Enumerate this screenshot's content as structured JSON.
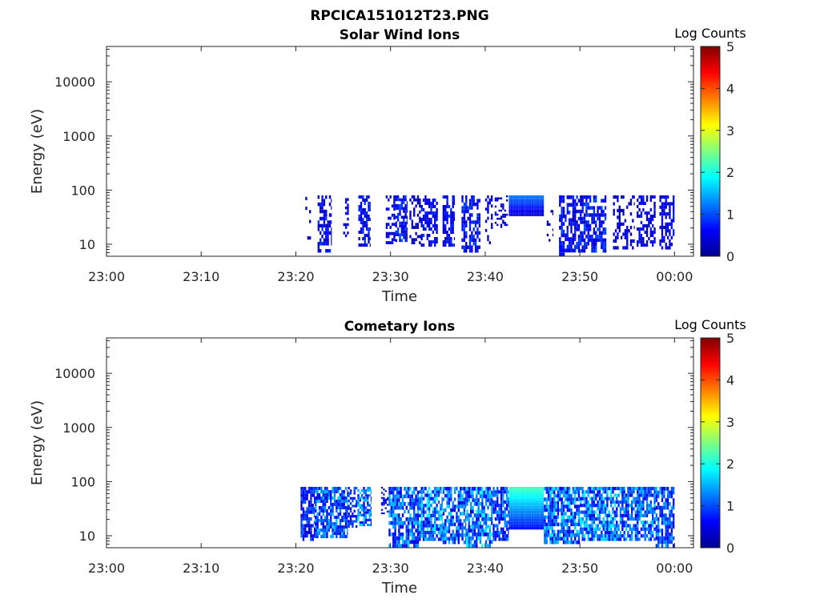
{
  "figure": {
    "title": "RPCICA151012T23.PNG"
  },
  "colormap": [
    "#00008f",
    "#0000ff",
    "#0080ff",
    "#00ffff",
    "#80ff80",
    "#ffff00",
    "#ff8000",
    "#ff0000",
    "#800000"
  ],
  "chart_data": [
    {
      "type": "heatmap",
      "title": "Solar Wind Ions",
      "xlabel": "Time",
      "ylabel": "Energy (eV)",
      "x_tick_labels": [
        "23:00",
        "23:10",
        "23:20",
        "23:30",
        "23:40",
        "23:50",
        "00:00"
      ],
      "x_tick_minutes": [
        0,
        10,
        20,
        30,
        40,
        50,
        60
      ],
      "xlim_minutes": [
        0,
        62
      ],
      "y_scale": "log",
      "y_tick_labels": [
        "10",
        "100",
        "1000",
        "10000"
      ],
      "y_tick_values": [
        10,
        100,
        1000,
        10000
      ],
      "ylim": [
        6,
        45000
      ],
      "colorbar": {
        "label": "Log Counts",
        "ticks": [
          "0",
          "1",
          "2",
          "3",
          "4",
          "5"
        ],
        "range": [
          0,
          5
        ]
      },
      "bursts": [
        {
          "t_start": 21.0,
          "t_end": 21.6,
          "e_min": 8,
          "e_max": 75,
          "level": 0.3,
          "density": 0.25
        },
        {
          "t_start": 22.3,
          "t_end": 23.8,
          "e_min": 7,
          "e_max": 80,
          "level": 0.8,
          "density": 0.6
        },
        {
          "t_start": 25.0,
          "t_end": 25.6,
          "e_min": 12,
          "e_max": 80,
          "level": 0.5,
          "density": 0.3
        },
        {
          "t_start": 26.6,
          "t_end": 27.9,
          "e_min": 9,
          "e_max": 80,
          "level": 0.8,
          "density": 0.55
        },
        {
          "t_start": 29.5,
          "t_end": 30.5,
          "e_min": 10,
          "e_max": 80,
          "level": 0.7,
          "density": 0.5
        },
        {
          "t_start": 30.5,
          "t_end": 31.8,
          "e_min": 11,
          "e_max": 80,
          "level": 0.9,
          "density": 0.7
        },
        {
          "t_start": 32.0,
          "t_end": 33.2,
          "e_min": 10,
          "e_max": 80,
          "level": 0.4,
          "density": 0.35
        },
        {
          "t_start": 33.2,
          "t_end": 35.0,
          "e_min": 9,
          "e_max": 80,
          "level": 0.8,
          "density": 0.6
        },
        {
          "t_start": 35.5,
          "t_end": 36.8,
          "e_min": 9,
          "e_max": 80,
          "level": 0.8,
          "density": 0.55
        },
        {
          "t_start": 37.5,
          "t_end": 39.5,
          "e_min": 7,
          "e_max": 80,
          "level": 0.85,
          "density": 0.65
        },
        {
          "t_start": 40.0,
          "t_end": 40.8,
          "e_min": 10,
          "e_max": 80,
          "level": 0.5,
          "density": 0.4
        },
        {
          "t_start": 41.0,
          "t_end": 42.4,
          "e_min": 20,
          "e_max": 80,
          "level": 0.6,
          "density": 0.35
        },
        {
          "t_start": 42.5,
          "t_end": 46.2,
          "e_min": 33,
          "e_max": 80,
          "level": 1.0,
          "density": 1.0
        },
        {
          "t_start": 46.5,
          "t_end": 47.2,
          "e_min": 10,
          "e_max": 60,
          "level": 0.3,
          "density": 0.2
        },
        {
          "t_start": 47.8,
          "t_end": 49.6,
          "e_min": 6,
          "e_max": 80,
          "level": 0.8,
          "density": 0.6
        },
        {
          "t_start": 49.6,
          "t_end": 52.8,
          "e_min": 7,
          "e_max": 80,
          "level": 0.9,
          "density": 0.65
        },
        {
          "t_start": 53.5,
          "t_end": 55.8,
          "e_min": 8,
          "e_max": 80,
          "level": 0.5,
          "density": 0.35
        },
        {
          "t_start": 56.0,
          "t_end": 58.0,
          "e_min": 9,
          "e_max": 80,
          "level": 0.7,
          "density": 0.55
        },
        {
          "t_start": 58.4,
          "t_end": 60.0,
          "e_min": 8,
          "e_max": 80,
          "level": 0.7,
          "density": 0.5
        }
      ]
    },
    {
      "type": "heatmap",
      "title": "Cometary Ions",
      "xlabel": "Time",
      "ylabel": "Energy (eV)",
      "x_tick_labels": [
        "23:00",
        "23:10",
        "23:20",
        "23:30",
        "23:40",
        "23:50",
        "00:00"
      ],
      "x_tick_minutes": [
        0,
        10,
        20,
        30,
        40,
        50,
        60
      ],
      "xlim_minutes": [
        0,
        62
      ],
      "y_scale": "log",
      "y_tick_labels": [
        "10",
        "100",
        "1000",
        "10000"
      ],
      "y_tick_values": [
        10,
        100,
        1000,
        10000
      ],
      "ylim": [
        6,
        45000
      ],
      "colorbar": {
        "label": "Log Counts",
        "ticks": [
          "0",
          "1",
          "2",
          "3",
          "4",
          "5"
        ],
        "range": [
          0,
          5
        ]
      },
      "bursts": [
        {
          "t_start": 20.5,
          "t_end": 22.0,
          "e_min": 8,
          "e_max": 80,
          "level": 1.0,
          "density": 0.7
        },
        {
          "t_start": 22.0,
          "t_end": 25.5,
          "e_min": 9,
          "e_max": 80,
          "level": 1.4,
          "density": 0.75
        },
        {
          "t_start": 25.5,
          "t_end": 26.5,
          "e_min": 14,
          "e_max": 80,
          "level": 1.0,
          "density": 0.55
        },
        {
          "t_start": 26.5,
          "t_end": 28.0,
          "e_min": 15,
          "e_max": 80,
          "level": 1.6,
          "density": 0.7
        },
        {
          "t_start": 29.0,
          "t_end": 29.8,
          "e_min": 25,
          "e_max": 80,
          "level": 0.6,
          "density": 0.4
        },
        {
          "t_start": 29.8,
          "t_end": 33.0,
          "e_min": 6,
          "e_max": 80,
          "level": 1.5,
          "density": 0.75
        },
        {
          "t_start": 33.0,
          "t_end": 35.5,
          "e_min": 8,
          "e_max": 80,
          "level": 1.7,
          "density": 0.8
        },
        {
          "t_start": 35.5,
          "t_end": 38.0,
          "e_min": 7,
          "e_max": 80,
          "level": 1.5,
          "density": 0.75
        },
        {
          "t_start": 38.0,
          "t_end": 40.8,
          "e_min": 6,
          "e_max": 80,
          "level": 1.7,
          "density": 0.8
        },
        {
          "t_start": 40.8,
          "t_end": 42.5,
          "e_min": 8,
          "e_max": 80,
          "level": 1.3,
          "density": 0.7
        },
        {
          "t_start": 42.5,
          "t_end": 46.2,
          "e_min": 13,
          "e_max": 80,
          "level": 1.8,
          "density": 1.0
        },
        {
          "t_start": 46.2,
          "t_end": 50.0,
          "e_min": 7,
          "e_max": 80,
          "level": 1.6,
          "density": 0.8
        },
        {
          "t_start": 50.0,
          "t_end": 54.0,
          "e_min": 8,
          "e_max": 80,
          "level": 1.7,
          "density": 0.8
        },
        {
          "t_start": 54.0,
          "t_end": 58.0,
          "e_min": 8,
          "e_max": 80,
          "level": 1.5,
          "density": 0.75
        },
        {
          "t_start": 58.0,
          "t_end": 60.0,
          "e_min": 6,
          "e_max": 80,
          "level": 1.4,
          "density": 0.75
        }
      ]
    }
  ]
}
